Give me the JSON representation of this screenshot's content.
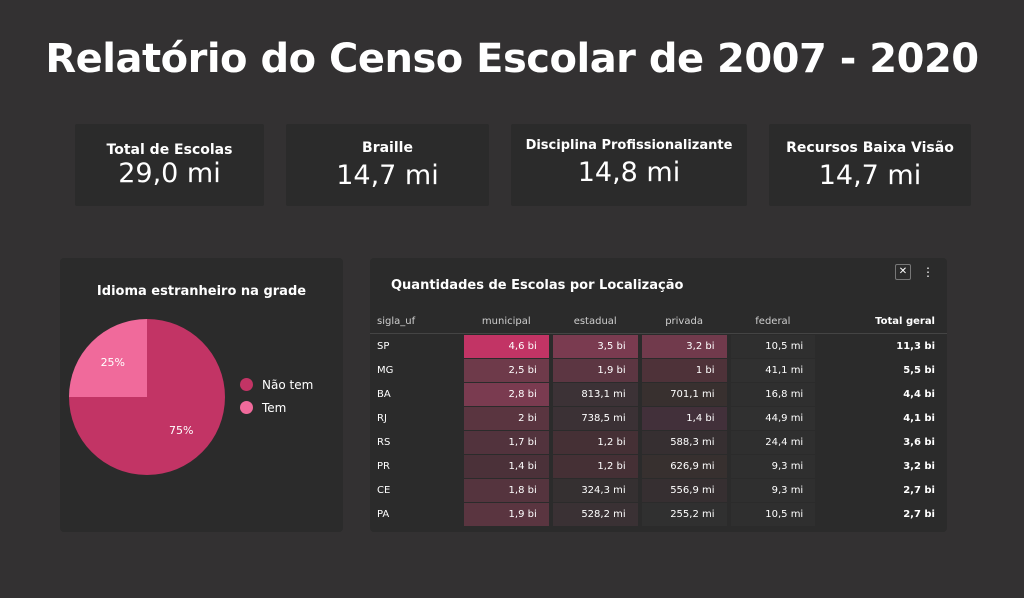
{
  "title": "Relatório do Censo Escolar de 2007 - 2020",
  "kpis": [
    {
      "label": "Total de Escolas",
      "value": "29,0 mi"
    },
    {
      "label": "Braille",
      "value": "14,7 mi"
    },
    {
      "label": "Disciplina Profissionalizante",
      "value": "14,8 mi"
    },
    {
      "label": "Recursos Baixa Visão",
      "value": "14,7 mi"
    }
  ],
  "pie": {
    "title": "Idioma estranheiro na grade",
    "slices": [
      {
        "name": "Não tem",
        "value": 75,
        "label": "75%",
        "color": "#c23465"
      },
      {
        "name": "Tem",
        "value": 25,
        "label": "25%",
        "color": "#f06a9b"
      }
    ]
  },
  "table": {
    "title": "Quantidades de Escolas por Localização",
    "icons": [
      "pin-off-icon",
      "more-vert-icon"
    ],
    "headers": [
      "sigla_uf",
      "municipal",
      "estadual",
      "privada",
      "federal",
      "Total geral"
    ],
    "rows": [
      {
        "uf": "SP",
        "municipal": "4,6 bi",
        "estadual": "3,5 bi",
        "privada": "3,2 bi",
        "federal": "10,5 mi",
        "total": "11,3 bi"
      },
      {
        "uf": "MG",
        "municipal": "2,5 bi",
        "estadual": "1,9 bi",
        "privada": "1 bi",
        "federal": "41,1 mi",
        "total": "5,5 bi"
      },
      {
        "uf": "BA",
        "municipal": "2,8 bi",
        "estadual": "813,1 mi",
        "privada": "701,1 mi",
        "federal": "16,8 mi",
        "total": "4,4 bi"
      },
      {
        "uf": "RJ",
        "municipal": "2 bi",
        "estadual": "738,5 mi",
        "privada": "1,4 bi",
        "federal": "44,9 mi",
        "total": "4,1 bi"
      },
      {
        "uf": "RS",
        "municipal": "1,7 bi",
        "estadual": "1,2 bi",
        "privada": "588,3 mi",
        "federal": "24,4 mi",
        "total": "3,6 bi"
      },
      {
        "uf": "PR",
        "municipal": "1,4 bi",
        "estadual": "1,2 bi",
        "privada": "626,9 mi",
        "federal": "9,3 mi",
        "total": "3,2 bi"
      },
      {
        "uf": "CE",
        "municipal": "1,8 bi",
        "estadual": "324,3 mi",
        "privada": "556,9 mi",
        "federal": "9,3 mi",
        "total": "2,7 bi"
      },
      {
        "uf": "PA",
        "municipal": "1,9 bi",
        "estadual": "528,2 mi",
        "privada": "255,2 mi",
        "federal": "10,5 mi",
        "total": "2,7 bi"
      }
    ],
    "heat": {
      "municipal": [
        "#c23465",
        "#6e3a4a",
        "#7a3b50",
        "#5a3540",
        "#52333d",
        "#4b3139",
        "#55343e",
        "#5a3540"
      ],
      "estadual": [
        "#7a3b50",
        "#5c3642",
        "#3c3236",
        "#3b3135",
        "#453035",
        "#453035",
        "#353031",
        "#3a3134"
      ],
      "privada": [
        "#713a4c",
        "#4e3239",
        "#38302f",
        "#42303a",
        "#362f31",
        "#37302f",
        "#362f31",
        "#303030"
      ],
      "federal": [
        "#2f2f2f",
        "#303030",
        "#2f2f2f",
        "#303030",
        "#2f2f2f",
        "#2f2f2f",
        "#2f2f2f",
        "#2f2f2f"
      ]
    }
  }
}
